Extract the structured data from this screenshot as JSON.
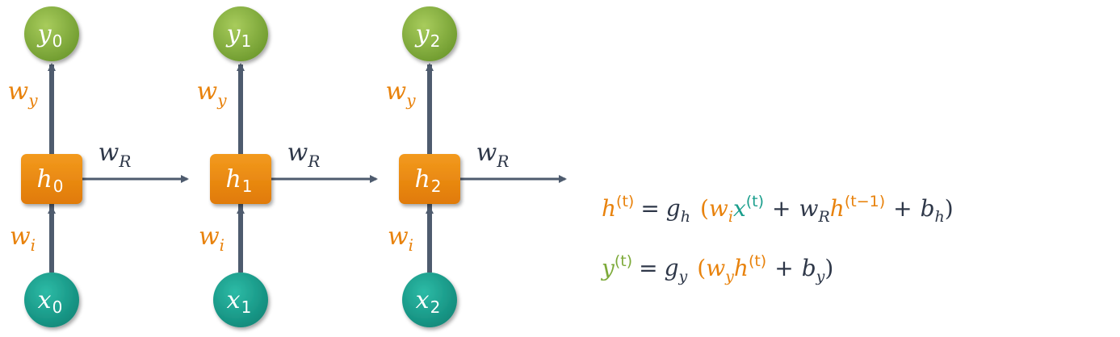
{
  "colors": {
    "orange": "#E8820C",
    "teal": "#1A9E8C",
    "green": "#7DAA3A",
    "slate": "#4E5B6E",
    "dark_text": "#2E3748",
    "white": "#FFFFFF"
  },
  "units": [
    {
      "output": {
        "base": "y",
        "sub": "0"
      },
      "hidden": {
        "base": "h",
        "sub": "0"
      },
      "input": {
        "base": "x",
        "sub": "0"
      },
      "wy": {
        "base": "w",
        "sub": "y"
      },
      "wi": {
        "base": "w",
        "sub": "i"
      },
      "wR": {
        "base": "w",
        "sub": "R"
      }
    },
    {
      "output": {
        "base": "y",
        "sub": "1"
      },
      "hidden": {
        "base": "h",
        "sub": "1"
      },
      "input": {
        "base": "x",
        "sub": "1"
      },
      "wy": {
        "base": "w",
        "sub": "y"
      },
      "wi": {
        "base": "w",
        "sub": "i"
      },
      "wR": {
        "base": "w",
        "sub": "R"
      }
    },
    {
      "output": {
        "base": "y",
        "sub": "2"
      },
      "hidden": {
        "base": "h",
        "sub": "2"
      },
      "input": {
        "base": "x",
        "sub": "2"
      },
      "wy": {
        "base": "w",
        "sub": "y"
      },
      "wi": {
        "base": "w",
        "sub": "i"
      },
      "wR": {
        "base": "w",
        "sub": "R"
      }
    }
  ],
  "equations": {
    "hidden": {
      "lhs": "h",
      "lhs_sup": "(t)",
      "eq": "=",
      "fn": "g",
      "fn_sub": "h",
      "open": "(",
      "t1_w": "w",
      "t1_w_sub": "i",
      "t1_x": "x",
      "t1_x_sup": "(t)",
      "plus1": "+",
      "t2_w": "w",
      "t2_w_sub": "R",
      "t2_h": "h",
      "t2_h_sup": "(t−1)",
      "plus2": "+",
      "bias": "b",
      "bias_sub": "h",
      "close": ")"
    },
    "output": {
      "lhs": "y",
      "lhs_sup": "(t)",
      "eq": "=",
      "fn": "g",
      "fn_sub": "y",
      "open": "(",
      "t1_w": "w",
      "t1_w_sub": "y",
      "t1_h": "h",
      "t1_h_sup": "(t)",
      "plus1": "+",
      "bias": "b",
      "bias_sub": "y",
      "close": ")"
    }
  }
}
